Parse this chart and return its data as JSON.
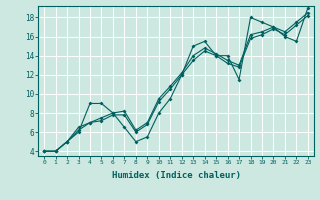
{
  "xlabel": "Humidex (Indice chaleur)",
  "xlim": [
    -0.5,
    23.5
  ],
  "ylim": [
    3.5,
    19.2
  ],
  "yticks": [
    4,
    6,
    8,
    10,
    12,
    14,
    16,
    18
  ],
  "xticks": [
    0,
    1,
    2,
    3,
    4,
    5,
    6,
    7,
    8,
    9,
    10,
    11,
    12,
    13,
    14,
    15,
    16,
    17,
    18,
    19,
    20,
    21,
    22,
    23
  ],
  "bg_color": "#cce8e0",
  "grid_color": "#ffffff",
  "line_color": "#006060",
  "line1": [
    4,
    4,
    5,
    6,
    9,
    9,
    8,
    6.5,
    5,
    5.5,
    8,
    9.5,
    12,
    15,
    15.5,
    14,
    14,
    11.5,
    18,
    17.5,
    17,
    16,
    15.5,
    19
  ],
  "line2": [
    4,
    4,
    5,
    6.5,
    7,
    7.5,
    8,
    8.2,
    6.2,
    7.0,
    9.5,
    10.8,
    12.2,
    14.0,
    14.8,
    14.2,
    13.5,
    13.0,
    16.2,
    16.5,
    17.0,
    16.5,
    17.5,
    18.5
  ],
  "line3": [
    4,
    4,
    5,
    6.2,
    7,
    7.2,
    7.8,
    7.8,
    6.0,
    6.8,
    9.2,
    10.5,
    12.0,
    13.5,
    14.5,
    14.0,
    13.2,
    12.8,
    15.8,
    16.2,
    16.8,
    16.2,
    17.2,
    18.2
  ]
}
